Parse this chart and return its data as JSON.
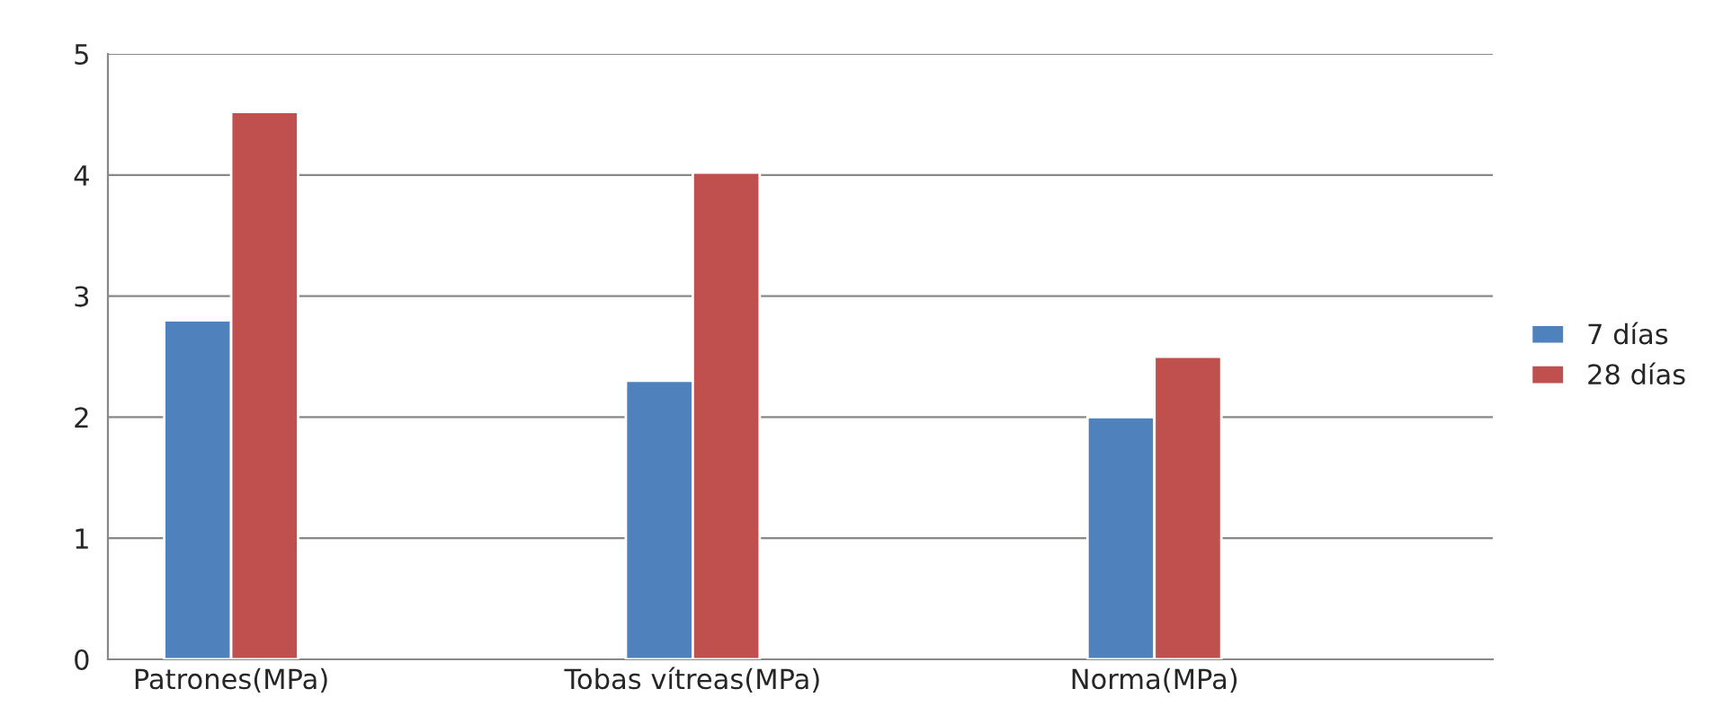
{
  "chart_data": {
    "type": "bar",
    "categories": [
      "Patrones(MPa)",
      "Tobas vítreas(MPa)",
      "Norma(MPa)"
    ],
    "series": [
      {
        "name": "7 días",
        "color": "#4f81bd",
        "values": [
          2.8,
          2.3,
          2.0
        ]
      },
      {
        "name": "28 días",
        "color": "#c0504d",
        "values": [
          4.52,
          4.02,
          2.5
        ]
      }
    ],
    "ylim": [
      0,
      5
    ],
    "yticks": [
      0,
      1,
      2,
      3,
      4,
      5
    ],
    "grid": "y",
    "legend": "right"
  }
}
